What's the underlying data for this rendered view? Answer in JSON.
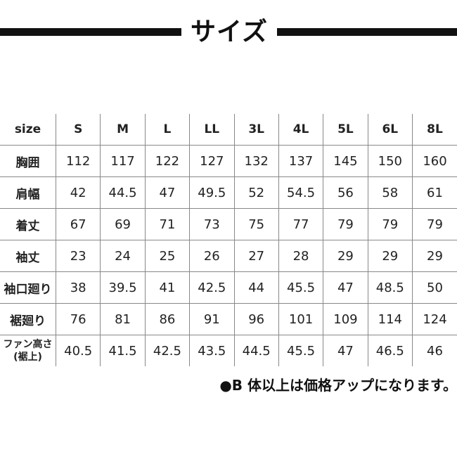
{
  "title": "サイズ",
  "table": {
    "header_label": "size",
    "sizes": [
      "S",
      "M",
      "L",
      "LL",
      "3L",
      "4L",
      "5L",
      "6L",
      "8L"
    ],
    "rows": [
      {
        "label": "胸囲",
        "values": [
          "112",
          "117",
          "122",
          "127",
          "132",
          "137",
          "145",
          "150",
          "160"
        ]
      },
      {
        "label": "肩幅",
        "values": [
          "42",
          "44.5",
          "47",
          "49.5",
          "52",
          "54.5",
          "56",
          "58",
          "61"
        ]
      },
      {
        "label": "着丈",
        "values": [
          "67",
          "69",
          "71",
          "73",
          "75",
          "77",
          "79",
          "79",
          "79"
        ]
      },
      {
        "label": "袖丈",
        "values": [
          "23",
          "24",
          "25",
          "26",
          "27",
          "28",
          "29",
          "29",
          "29"
        ]
      },
      {
        "label": "袖口廻り",
        "values": [
          "38",
          "39.5",
          "41",
          "42.5",
          "44",
          "45.5",
          "47",
          "48.5",
          "50"
        ]
      },
      {
        "label": "裾廻り",
        "values": [
          "76",
          "81",
          "86",
          "91",
          "96",
          "101",
          "109",
          "114",
          "124"
        ]
      },
      {
        "label": "ファン高さ",
        "label2": "(裾上)",
        "values": [
          "40.5",
          "41.5",
          "42.5",
          "43.5",
          "44.5",
          "45.5",
          "47",
          "46.5",
          "46"
        ]
      }
    ]
  },
  "note": "●B 体以上は価格アップになります。"
}
